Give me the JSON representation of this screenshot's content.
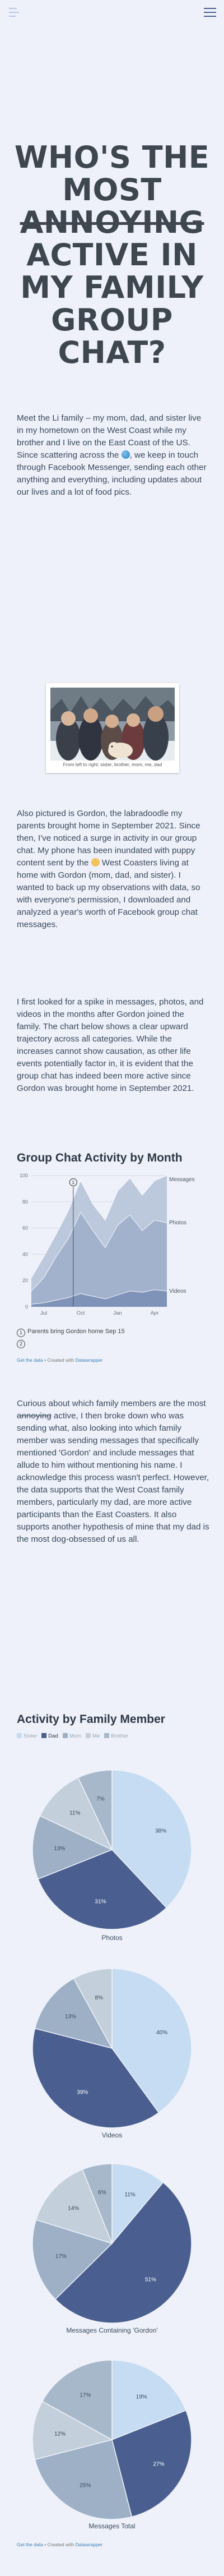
{
  "title": {
    "line1": "WHO'S THE",
    "line2": "MOST",
    "line3_strike": "ANNOYING",
    "line4": "ACTIVE IN",
    "line5": "MY FAMILY",
    "line6": "GROUP",
    "line7": "CHAT?"
  },
  "intro": {
    "p1_a": "Meet the Li family – my mom, dad, and sister live in my hometown on the West Coast while my brother and I live on the East Coast of the US. Since scattering across the ",
    "p1_b": ", we keep in touch through Facebook Messenger, sending each other anything and everything, including updates about our lives and a lot of food pics.",
    "photo_caption": "From left to right: sister, brother, mom, me, dad",
    "p2_a": "Also pictured is Gordon, the labradoodle my parents brought home in September 2021. Since then, I've noticed a surge in activity in our group chat. My phone has been inundated with puppy content sent by the ",
    "p2_b": " West Coasters living at home with Gordon (mom, dad, and sister). I wanted to back up my observations with data, so with everyone's permission, I downloaded and analyzed a year's worth of Facebook group chat messages.",
    "p3": "I first looked for a spike in messages, photos, and videos in the months after Gordon joined the family. The chart below shows a clear upward trajectory across all categories. While the increases cannot show causation, as other life events potentially factor in, it is evident that the group chat has indeed been more active since Gordon was brought home in September 2021."
  },
  "activity": {
    "heading": "Group Chat Activity by Month",
    "annotation_1": "1",
    "annotation_2": "2",
    "note_1": "Parents bring Gordon home Sep 15",
    "note_2": "",
    "source_a": "Get the data",
    "source_b": " • Created with ",
    "source_c": "Datawrapper"
  },
  "p4": {
    "a": "Curious about which family members are the most ",
    "strike": "annoying",
    "b": " active, I then broke down who was sending what, also looking into which family member was sending messages that specifically mentioned 'Gordon' and include messages that allude to him without mentioning his name. I acknowledge this process wasn't perfect. However, the data supports that the West Coast family members, particularly my dad, are more active participants than the East Coasters. It also supports another hypothesis of mine that my dad is the most dog-obsessed of us all."
  },
  "member": {
    "heading": "Activity by Family Member",
    "legend": [
      "Sister",
      "Dad",
      "Mom",
      "Me",
      "Brother"
    ],
    "selected": "Dad",
    "pie_labels": [
      "Photos",
      "Videos",
      "Messages Containing 'Gordon'",
      "Messages Total"
    ],
    "source_a": "Get the data",
    "source_b": " • Created with ",
    "source_c": "Datawrapper"
  },
  "colors": {
    "sister": "#c6dcf2",
    "dad": "#4a5f8f",
    "mom": "#9db0c6",
    "me": "#c3d0db",
    "brother": "#a8b8cb",
    "area_messages": "#bcc8dc",
    "area_photos": "#a2b2cc",
    "area_videos": "#7f93b8"
  },
  "chart_data": [
    {
      "type": "area",
      "title": "Group Chat Activity by Month",
      "x": [
        "2021-06",
        "2021-07",
        "2021-08",
        "2021-09",
        "2021-10",
        "2021-11",
        "2021-12",
        "2022-01",
        "2022-02",
        "2022-03",
        "2022-04",
        "2022-05"
      ],
      "x_tick_labels": [
        "Jul",
        "Oct",
        "Jan",
        "Apr"
      ],
      "y_ticks": [
        0,
        20,
        40,
        60,
        80,
        100
      ],
      "ylim": [
        0,
        100
      ],
      "series": [
        {
          "name": "Messages",
          "values": [
            22,
            38,
            55,
            73,
            96,
            78,
            66,
            88,
            98,
            85,
            96,
            100
          ]
        },
        {
          "name": "Photos",
          "values": [
            12,
            22,
            38,
            52,
            72,
            58,
            45,
            62,
            70,
            58,
            66,
            64
          ]
        },
        {
          "name": "Videos",
          "values": [
            2,
            3,
            5,
            7,
            10,
            8,
            6,
            9,
            12,
            11,
            13,
            12
          ]
        }
      ],
      "grid": true,
      "legend": "right"
    },
    {
      "type": "pie",
      "title": "Photos",
      "categories": [
        "Sister",
        "Dad",
        "Mom",
        "Me",
        "Brother"
      ],
      "values": [
        38,
        31,
        13,
        11,
        7
      ]
    },
    {
      "type": "pie",
      "title": "Videos",
      "categories": [
        "Sister",
        "Dad",
        "Mom",
        "Me",
        "Brother"
      ],
      "values": [
        40,
        39,
        13,
        8,
        0
      ]
    },
    {
      "type": "pie",
      "title": "Messages Containing 'Gordon'",
      "categories": [
        "Sister",
        "Dad",
        "Mom",
        "Me",
        "Brother"
      ],
      "values": [
        11,
        51,
        17,
        14,
        6
      ]
    },
    {
      "type": "pie",
      "title": "Messages Total",
      "categories": [
        "Sister",
        "Dad",
        "Mom",
        "Me",
        "Brother"
      ],
      "values": [
        19,
        27,
        25,
        12,
        17
      ]
    }
  ]
}
